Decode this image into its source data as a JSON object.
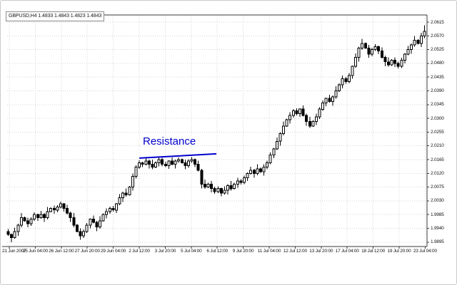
{
  "window": {
    "ohlc_header": "GBPUSD,H4 1.4833 1.4843 1.4823 1.4843",
    "symbol": "GBPUSD",
    "timeframe": "H4",
    "quote": {
      "open": "1.4833",
      "high": "1.4843",
      "low": "1.4823",
      "close": "1.4843"
    }
  },
  "colors": {
    "background": "#ffffff",
    "grid": "#d5d5d5",
    "frame": "#3a3a3a",
    "bull_fill": "#ffffff",
    "bear_fill": "#000000",
    "outline": "#000000",
    "annotation_blue": "#0000cd"
  },
  "chart_data": {
    "type": "candlestick",
    "title": "GBPUSD,H4 1.4833 1.4843 1.4823 1.4843",
    "symbol": "GBPUSD",
    "timeframe": "H4",
    "grid": true,
    "y_range": [
      1.988,
      2.0638
    ],
    "y_tick_step": 0.0045,
    "y_ticks": [
      "2.0615",
      "2.0570",
      "2.0525",
      "2.0480",
      "2.0435",
      "2.0390",
      "2.0345",
      "2.0300",
      "2.0255",
      "2.0210",
      "2.0165",
      "2.0120",
      "2.0075",
      "2.0030",
      "1.9985",
      "1.9940",
      "1.9895"
    ],
    "x_ticks": [
      "21 Jun 2007",
      "25 Jun 04:00",
      "26 Jun 12:00",
      "27 Jun 20:00",
      "29 Jun 04:00",
      "2 Jul 12:00",
      "3 Jul 20:00",
      "5 Jul 04:00",
      "6 Jul 12:00",
      "9 Jul 20:00",
      "11 Jul 04:00",
      "12 Jul 12:00",
      "13 Jul 20:00",
      "17 Jul 04:00",
      "18 Jul 12:00",
      "19 Jul 20:00",
      "23 Jul 04:00"
    ],
    "annotations": [
      {
        "type": "label",
        "text": "Resistance",
        "color": "#0000cd"
      },
      {
        "type": "trendline",
        "color": "#0000cd",
        "width": 2,
        "from_index": 40,
        "from_price": 2.017,
        "to_index": 63.5,
        "to_price": 2.0184
      }
    ],
    "candles": [
      [
        1.993,
        1.9938,
        1.9915,
        1.992
      ],
      [
        1.992,
        1.9923,
        1.9895,
        1.991
      ],
      [
        1.991,
        1.9942,
        1.9906,
        1.993
      ],
      [
        1.993,
        1.9955,
        1.9916,
        1.995
      ],
      [
        1.995,
        1.999,
        1.9944,
        1.9975
      ],
      [
        1.9975,
        1.9979,
        1.9962,
        1.9965
      ],
      [
        1.9965,
        1.9975,
        1.9943,
        1.9955
      ],
      [
        1.9955,
        1.9976,
        1.9948,
        1.997
      ],
      [
        1.997,
        1.9993,
        1.9965,
        1.9985
      ],
      [
        1.9985,
        1.9988,
        1.9965,
        1.9975
      ],
      [
        1.9975,
        1.9997,
        1.9971,
        1.9985
      ],
      [
        1.9985,
        1.999,
        1.9961,
        1.9975
      ],
      [
        1.9975,
        2.001,
        1.9969,
        1.9995
      ],
      [
        1.9995,
        2.0009,
        1.9992,
        2.0005
      ],
      [
        2.0005,
        2.0015,
        1.9988,
        2.0
      ],
      [
        2.0,
        2.0016,
        1.9993,
        2.001
      ],
      [
        2.001,
        2.0028,
        2.0005,
        2.002
      ],
      [
        2.002,
        2.0023,
        1.9995,
        2.0005
      ],
      [
        2.0005,
        2.0017,
        1.9986,
        1.999
      ],
      [
        1.999,
        1.9995,
        1.9961,
        1.9975
      ],
      [
        1.9975,
        1.999,
        1.9944,
        1.995
      ],
      [
        1.995,
        1.9954,
        1.9927,
        1.993
      ],
      [
        1.993,
        1.994,
        1.9903,
        1.9915
      ],
      [
        1.9915,
        1.9936,
        1.9908,
        1.993
      ],
      [
        1.993,
        1.9958,
        1.9925,
        1.995
      ],
      [
        1.995,
        1.9973,
        1.994,
        1.997
      ],
      [
        1.997,
        1.9982,
        1.9956,
        1.996
      ],
      [
        1.996,
        1.9965,
        1.9931,
        1.9945
      ],
      [
        1.9945,
        1.998,
        1.9939,
        1.9965
      ],
      [
        1.9965,
        1.9989,
        1.9962,
        1.9985
      ],
      [
        1.9985,
        2.0005,
        1.9973,
        1.9995
      ],
      [
        1.9995,
        2.0011,
        1.9988,
        2.0005
      ],
      [
        2.0005,
        2.0013,
        1.9995,
        2.0
      ],
      [
        2.0,
        2.0023,
        1.999,
        2.002
      ],
      [
        2.002,
        2.0052,
        2.0016,
        2.004
      ],
      [
        2.004,
        2.006,
        2.0026,
        2.0055
      ],
      [
        2.0055,
        2.007,
        2.0044,
        2.005
      ],
      [
        2.005,
        2.0079,
        2.0047,
        2.0075
      ],
      [
        2.0075,
        2.012,
        2.0063,
        2.011
      ],
      [
        2.011,
        2.0146,
        2.0103,
        2.014
      ],
      [
        2.014,
        2.0163,
        2.0135,
        2.0155
      ],
      [
        2.0155,
        2.0158,
        2.014,
        2.015
      ],
      [
        2.015,
        2.0172,
        2.0146,
        2.016
      ],
      [
        2.016,
        2.0165,
        2.0136,
        2.015
      ],
      [
        2.015,
        2.0165,
        2.0134,
        2.014
      ],
      [
        2.014,
        2.0159,
        2.0137,
        2.0155
      ],
      [
        2.0155,
        2.0175,
        2.0143,
        2.0165
      ],
      [
        2.0165,
        2.0171,
        2.0143,
        2.015
      ],
      [
        2.015,
        2.0158,
        2.014,
        2.0145
      ],
      [
        2.0145,
        2.0163,
        2.0135,
        2.016
      ],
      [
        2.016,
        2.0172,
        2.0146,
        2.015
      ],
      [
        2.015,
        2.0165,
        2.0136,
        2.016
      ],
      [
        2.016,
        2.0172,
        2.0154,
        2.0165
      ],
      [
        2.0165,
        2.0169,
        2.0152,
        2.0155
      ],
      [
        2.0155,
        2.0165,
        2.0133,
        2.0145
      ],
      [
        2.0145,
        2.0166,
        2.0138,
        2.016
      ],
      [
        2.016,
        2.0173,
        2.0155,
        2.0165
      ],
      [
        2.0165,
        2.0168,
        2.014,
        2.015
      ],
      [
        2.015,
        2.0162,
        2.0126,
        2.013
      ],
      [
        2.013,
        2.0135,
        2.0071,
        2.0085
      ],
      [
        2.0085,
        2.01,
        2.0069,
        2.0075
      ],
      [
        2.0075,
        2.0089,
        2.0072,
        2.0085
      ],
      [
        2.0085,
        2.0095,
        2.0058,
        2.007
      ],
      [
        2.007,
        2.0076,
        2.0053,
        2.006
      ],
      [
        2.006,
        2.0078,
        2.0055,
        2.007
      ],
      [
        2.007,
        2.0073,
        2.0045,
        2.0055
      ],
      [
        2.0055,
        2.0077,
        2.0051,
        2.0065
      ],
      [
        2.0065,
        2.0085,
        2.0051,
        2.008
      ],
      [
        2.008,
        2.0095,
        2.0064,
        2.007
      ],
      [
        2.007,
        2.0089,
        2.0067,
        2.0085
      ],
      [
        2.0085,
        2.0105,
        2.0073,
        2.0095
      ],
      [
        2.0095,
        2.0101,
        2.0083,
        2.009
      ],
      [
        2.009,
        2.0113,
        2.0085,
        2.0105
      ],
      [
        2.0105,
        2.0123,
        2.0095,
        2.012
      ],
      [
        2.012,
        2.0142,
        2.0116,
        2.013
      ],
      [
        2.013,
        2.0135,
        2.0106,
        2.012
      ],
      [
        2.012,
        2.015,
        2.0114,
        2.0135
      ],
      [
        2.0135,
        2.0139,
        2.0122,
        2.0125
      ],
      [
        2.0125,
        2.015,
        2.0113,
        2.014
      ],
      [
        2.014,
        2.0161,
        2.0133,
        2.0155
      ],
      [
        2.0155,
        2.0188,
        2.015,
        2.018
      ],
      [
        2.018,
        2.0203,
        2.017,
        2.02
      ],
      [
        2.02,
        2.0237,
        2.0196,
        2.0225
      ],
      [
        2.0225,
        2.0255,
        2.0211,
        2.025
      ],
      [
        2.025,
        2.029,
        2.0244,
        2.0275
      ],
      [
        2.0275,
        2.0299,
        2.0272,
        2.0295
      ],
      [
        2.0295,
        2.032,
        2.0283,
        2.031
      ],
      [
        2.031,
        2.0331,
        2.0303,
        2.0325
      ],
      [
        2.0325,
        2.0333,
        2.031,
        2.0315
      ],
      [
        2.0315,
        2.0333,
        2.0305,
        2.033
      ],
      [
        2.033,
        2.0342,
        2.0306,
        2.031
      ],
      [
        2.031,
        2.0315,
        2.0276,
        2.029
      ],
      [
        2.029,
        2.0305,
        2.0269,
        2.0275
      ],
      [
        2.0275,
        2.0294,
        2.0272,
        2.029
      ],
      [
        2.029,
        2.0315,
        2.0278,
        2.0305
      ],
      [
        2.0305,
        2.0336,
        2.0298,
        2.033
      ],
      [
        2.033,
        2.0358,
        2.0325,
        2.035
      ],
      [
        2.035,
        2.0368,
        2.034,
        2.0365
      ],
      [
        2.0365,
        2.0377,
        2.0351,
        2.0355
      ],
      [
        2.0355,
        2.0375,
        2.0341,
        2.037
      ],
      [
        2.037,
        2.0405,
        2.0364,
        2.039
      ],
      [
        2.039,
        2.0414,
        2.0387,
        2.041
      ],
      [
        2.041,
        2.044,
        2.0398,
        2.043
      ],
      [
        2.043,
        2.0436,
        2.0413,
        2.042
      ],
      [
        2.042,
        2.0448,
        2.0415,
        2.044
      ],
      [
        2.044,
        2.0473,
        2.043,
        2.047
      ],
      [
        2.047,
        2.0512,
        2.0466,
        2.05
      ],
      [
        2.05,
        2.0535,
        2.0486,
        2.053
      ],
      [
        2.053,
        2.056,
        2.0524,
        2.0545
      ],
      [
        2.0545,
        2.0549,
        2.0527,
        2.053
      ],
      [
        2.053,
        2.054,
        2.0498,
        2.051
      ],
      [
        2.051,
        2.0531,
        2.0503,
        2.0525
      ],
      [
        2.0525,
        2.0543,
        2.052,
        2.0535
      ],
      [
        2.0535,
        2.0538,
        2.051,
        2.052
      ],
      [
        2.052,
        2.0532,
        2.0496,
        2.05
      ],
      [
        2.05,
        2.0505,
        2.0471,
        2.0485
      ],
      [
        2.0485,
        2.05,
        2.0469,
        2.0475
      ],
      [
        2.0475,
        2.0494,
        2.0472,
        2.049
      ],
      [
        2.049,
        2.05,
        2.0468,
        2.048
      ],
      [
        2.048,
        2.0486,
        2.0463,
        2.047
      ],
      [
        2.047,
        2.0498,
        2.0465,
        2.049
      ],
      [
        2.049,
        2.0513,
        2.048,
        2.051
      ],
      [
        2.051,
        2.0537,
        2.0506,
        2.0525
      ],
      [
        2.0525,
        2.0545,
        2.0511,
        2.054
      ],
      [
        2.054,
        2.057,
        2.0534,
        2.0555
      ],
      [
        2.0555,
        2.0559,
        2.0542,
        2.0545
      ],
      [
        2.0545,
        2.058,
        2.0533,
        2.057
      ],
      [
        2.057,
        2.0605,
        2.0563,
        2.0585
      ]
    ]
  }
}
